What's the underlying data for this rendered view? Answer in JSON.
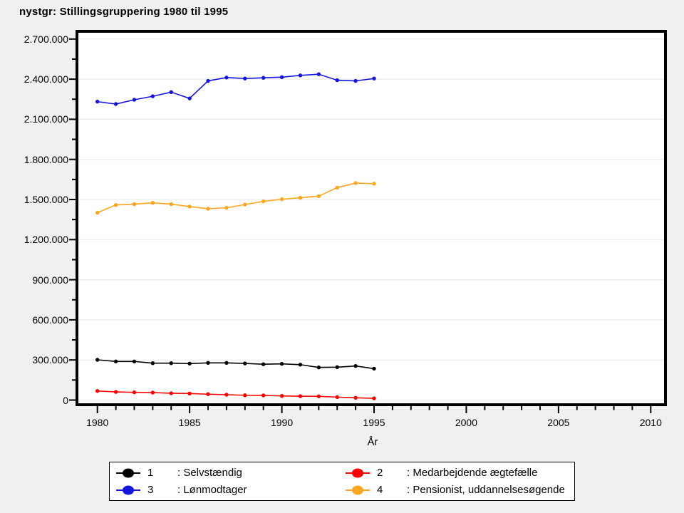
{
  "window": {
    "background": "#f0f0f0",
    "plot_background": "#ffffff",
    "frame_color": "#000000",
    "gridline_color": "#e8e8e8"
  },
  "chart_data": {
    "type": "line",
    "title": "nystgr: Stillingsgruppering 1980 til 1995",
    "xlabel": "År",
    "ylabel": "",
    "grid": "horizontal-major",
    "legend_position": "bottom-center-boxed",
    "x": [
      1980,
      1981,
      1982,
      1983,
      1984,
      1985,
      1986,
      1987,
      1988,
      1989,
      1990,
      1991,
      1992,
      1993,
      1994,
      1995
    ],
    "x_axis": {
      "min": 1979,
      "max": 2011,
      "major_ticks": [
        1980,
        1985,
        1990,
        1995,
        2000,
        2005,
        2010
      ],
      "major_tick_labels": [
        "1980",
        "1985",
        "1990",
        "1995",
        "2000",
        "2005",
        "2010"
      ],
      "minor_step_years": 1
    },
    "y_axis": {
      "min": 0,
      "max": 2700000,
      "major_step": 300000,
      "minor_step": 150000,
      "major_tick_labels": [
        "0",
        "300.000",
        "600.000",
        "900.000",
        "1.200.000",
        "1.500.000",
        "1.800.000",
        "2.100.000",
        "2.400.000",
        "2.700.000"
      ]
    },
    "series": [
      {
        "legend_number": "1",
        "legend_label": ": Selvstændig",
        "name": "Selvstændig",
        "color": "#000000",
        "values": [
          301000,
          289000,
          289000,
          276000,
          276000,
          273000,
          278000,
          278000,
          274000,
          268000,
          271000,
          265000,
          244000,
          246000,
          255000,
          235000
        ]
      },
      {
        "legend_number": "2",
        "legend_label": ": Medarbejdende ægtefælle",
        "name": "Medarbejdende ægtefælle",
        "color": "#ff0000",
        "values": [
          68000,
          61000,
          58000,
          56000,
          51000,
          49000,
          44000,
          40000,
          36000,
          35000,
          31000,
          29000,
          28000,
          22000,
          17000,
          13000
        ]
      },
      {
        "legend_number": "3",
        "legend_label": ": Lønmodtager",
        "name": "Lønmodtager",
        "color": "#1515e0",
        "values": [
          2232000,
          2214000,
          2246000,
          2272000,
          2303000,
          2256000,
          2387000,
          2412000,
          2405000,
          2410000,
          2415000,
          2428000,
          2437000,
          2392000,
          2387000,
          2405000
        ]
      },
      {
        "legend_number": "4",
        "legend_label": ": Pensionist, uddannelsesøgende",
        "name": "Pensionist, uddannelsesøgende",
        "color": "#ffa51e",
        "values": [
          1401000,
          1459000,
          1465000,
          1475000,
          1465000,
          1447000,
          1431000,
          1438000,
          1462000,
          1486000,
          1502000,
          1513000,
          1525000,
          1589000,
          1623000,
          1618000
        ]
      }
    ]
  }
}
